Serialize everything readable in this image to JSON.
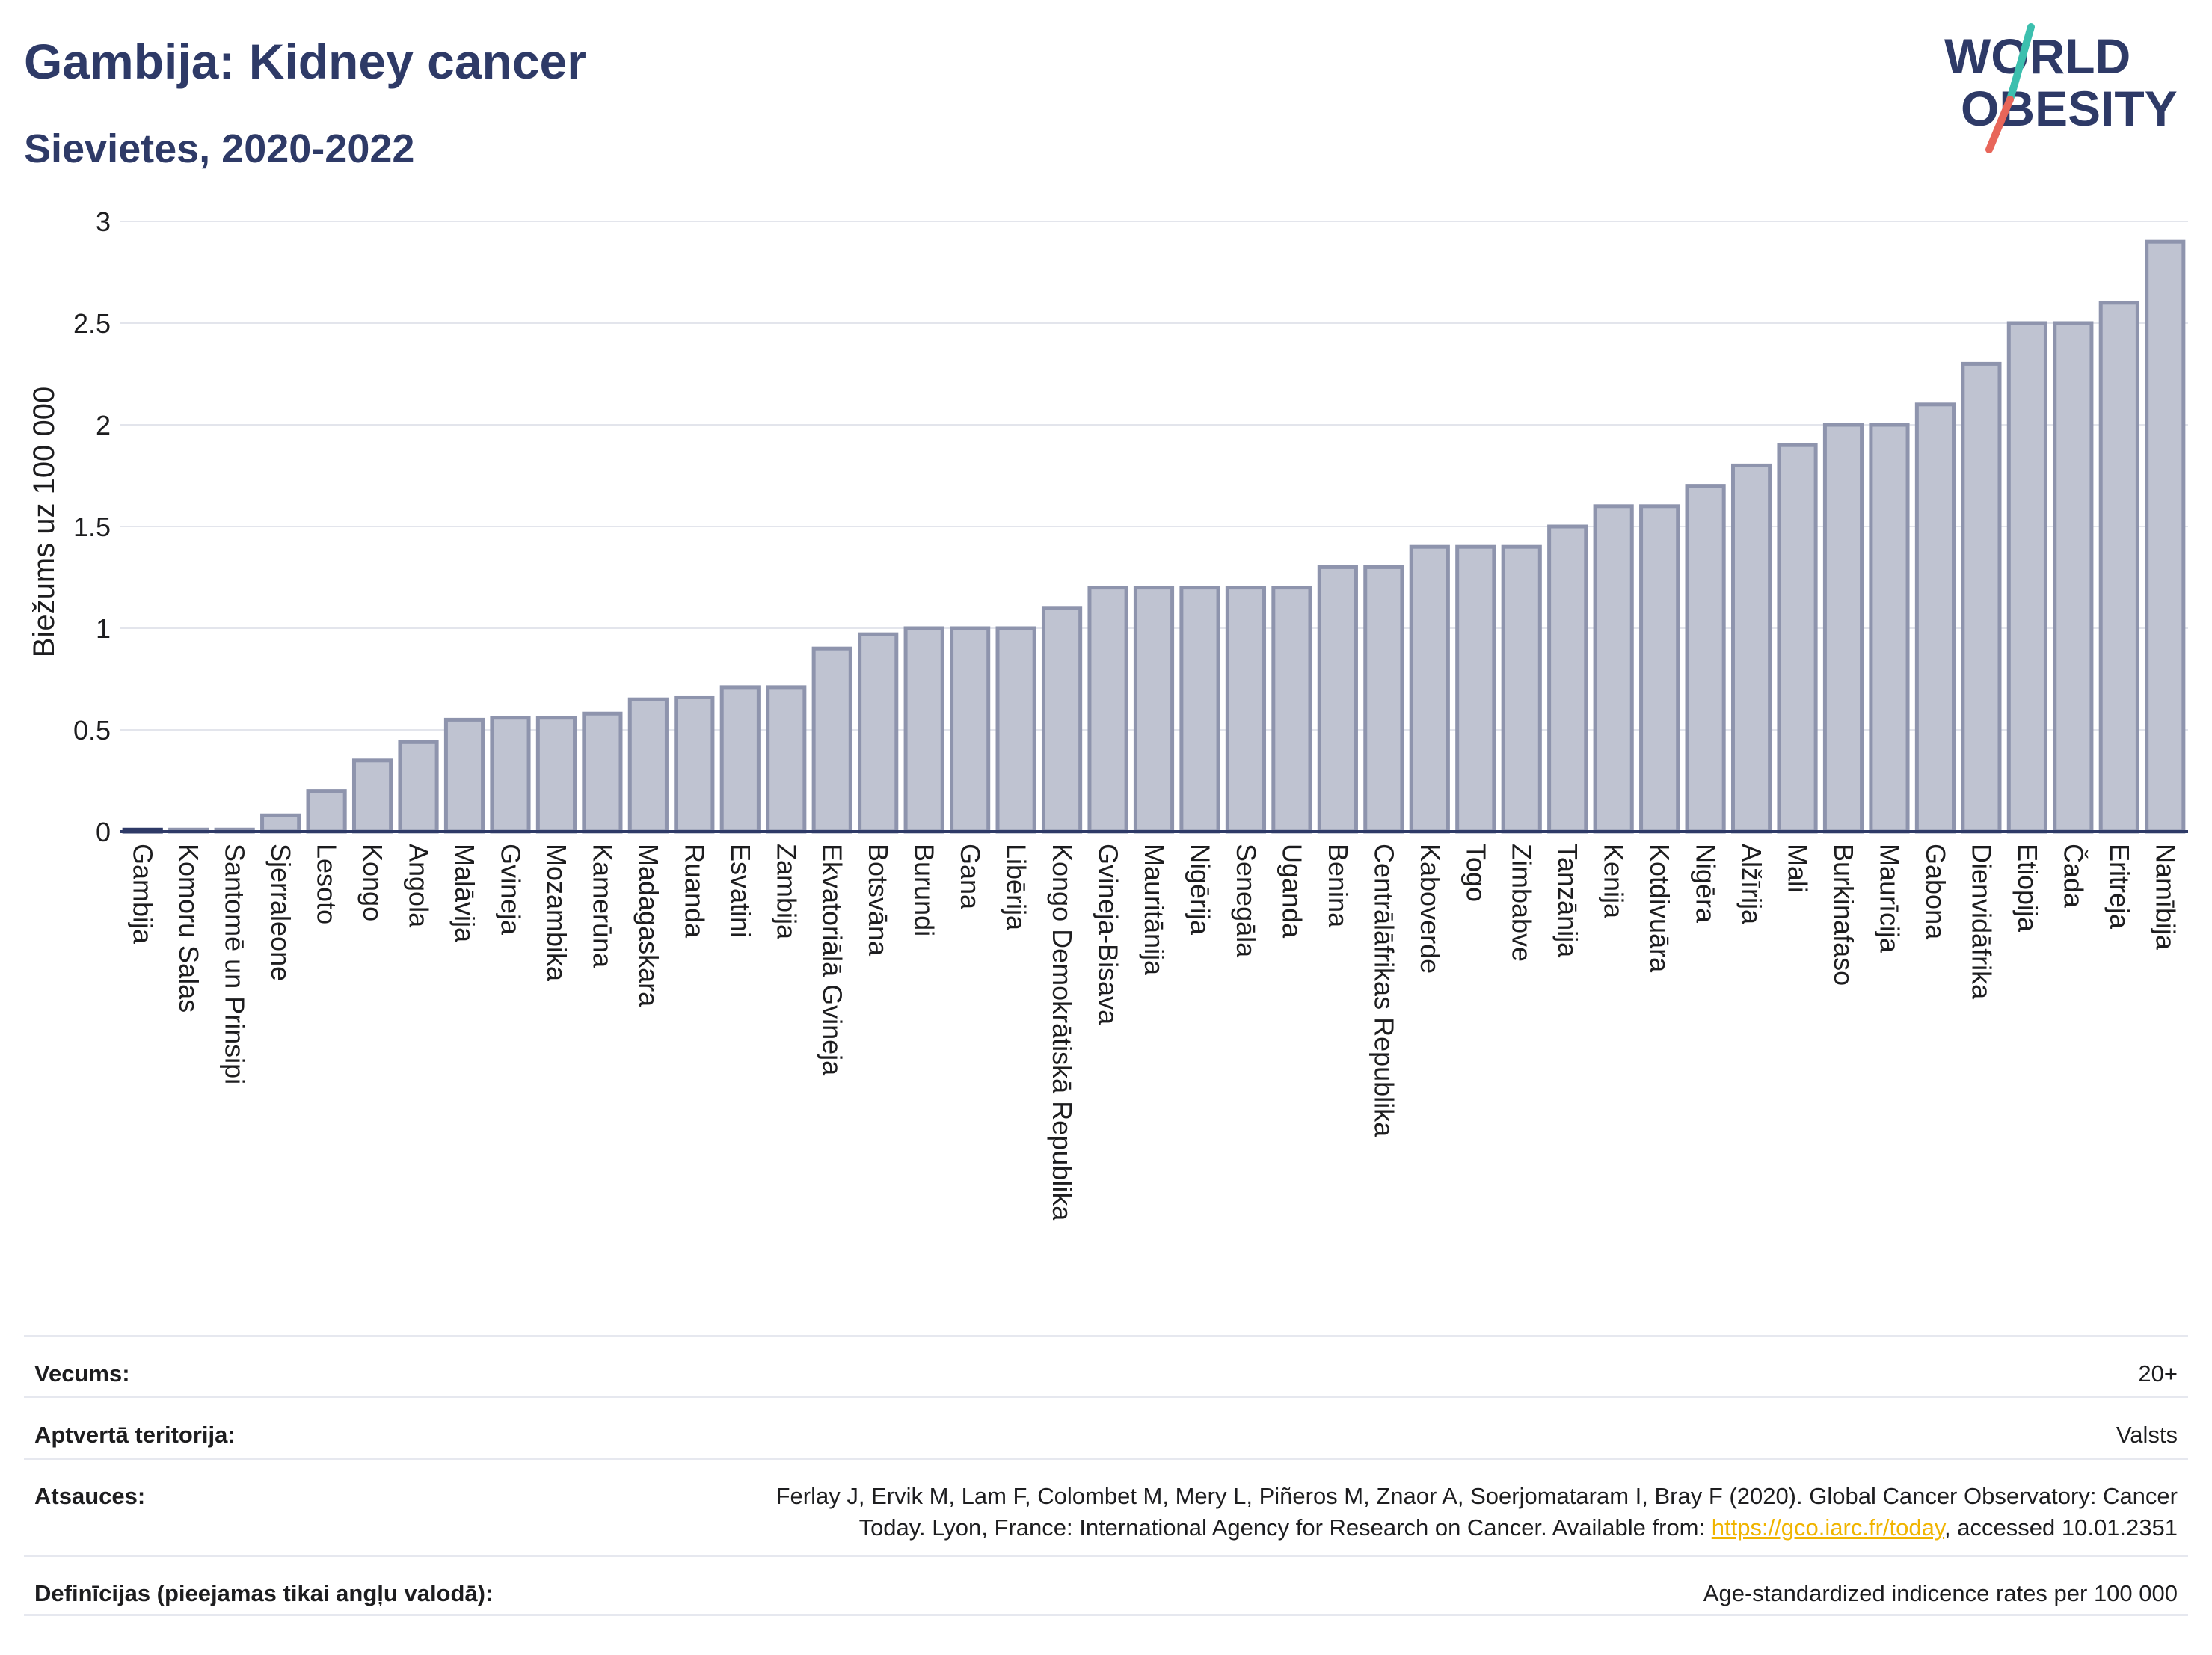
{
  "header": {
    "title": "Gambija: Kidney cancer",
    "subtitle": "Sievietes, 2020-2022"
  },
  "logo": {
    "line1": "WORLD",
    "line2": "OBESITY",
    "colors": {
      "text": "#2e3a67",
      "slash_teal": "#3cbfae",
      "slash_red": "#e8665a"
    }
  },
  "colors": {
    "bar_fill": "#bfc3d1",
    "bar_stroke": "#8e94ad",
    "highlight": "#2e3a67",
    "grid": "#e3e5ec",
    "axis": "#2e3a67"
  },
  "chart_data": {
    "type": "bar",
    "ylabel": "Biežums uz 100 000",
    "ylim": [
      0,
      3
    ],
    "yticks": [
      "0",
      "0.5",
      "1",
      "1.5",
      "2",
      "2.5",
      "3"
    ],
    "grid": true,
    "highlight": "Gambija",
    "categories": [
      "Gambija",
      "Komoru Salas",
      "Santomē un Prinsipi",
      "Sjerraleone",
      "Lesoto",
      "Kongo",
      "Angola",
      "Malāvija",
      "Gvineja",
      "Mozambika",
      "Kamerūna",
      "Madagaskara",
      "Ruanda",
      "Esvatini",
      "Zambija",
      "Ekvatoriālā Gvineja",
      "Botsvāna",
      "Burundi",
      "Gana",
      "Libērija",
      "Kongo Demokrātiskā Republika",
      "Gvineja-Bisava",
      "Mauritānija",
      "Nigērija",
      "Senegāla",
      "Uganda",
      "Benina",
      "Centrālāfrikas Republika",
      "Kaboverde",
      "Togo",
      "Zimbabve",
      "Tanzānija",
      "Kenija",
      "Kotdivuāra",
      "Nigēra",
      "Alžīrija",
      "Mali",
      "Burkinafaso",
      "Maurīcija",
      "Gabona",
      "Dienvidāfrika",
      "Etiopija",
      "Čada",
      "Eritreja",
      "Namībija"
    ],
    "values": [
      0.01,
      0.01,
      0.01,
      0.08,
      0.2,
      0.35,
      0.44,
      0.55,
      0.56,
      0.56,
      0.58,
      0.65,
      0.66,
      0.71,
      0.71,
      0.9,
      0.97,
      1.0,
      1.0,
      1.0,
      1.1,
      1.2,
      1.2,
      1.2,
      1.2,
      1.2,
      1.3,
      1.3,
      1.4,
      1.4,
      1.4,
      1.5,
      1.6,
      1.6,
      1.7,
      1.8,
      1.9,
      2.0,
      2.0,
      2.1,
      2.3,
      2.5,
      2.5,
      2.6,
      2.9
    ]
  },
  "footer": {
    "rows": [
      {
        "key": "Vecums:",
        "value": "20+"
      },
      {
        "key": "Aptvertā teritorija:",
        "value": "Valsts"
      },
      {
        "key": "Atsauces:",
        "value_line1": "Ferlay J, Ervik M, Lam F, Colombet M, Mery L, Piñeros M, Znaor A, Soerjomataram I, Bray F (2020). Global Cancer Observatory: Cancer",
        "value_line2_pre": "Today. Lyon, France: International Agency for Research on Cancer. Available from: ",
        "link": "https://gco.iarc.fr/today",
        "value_line2_post": ", accessed 10.01.2351"
      },
      {
        "key": "Definīcijas (pieejamas tikai angļu valodā):",
        "value": "Age-standardized indicence rates per 100 000"
      }
    ]
  }
}
